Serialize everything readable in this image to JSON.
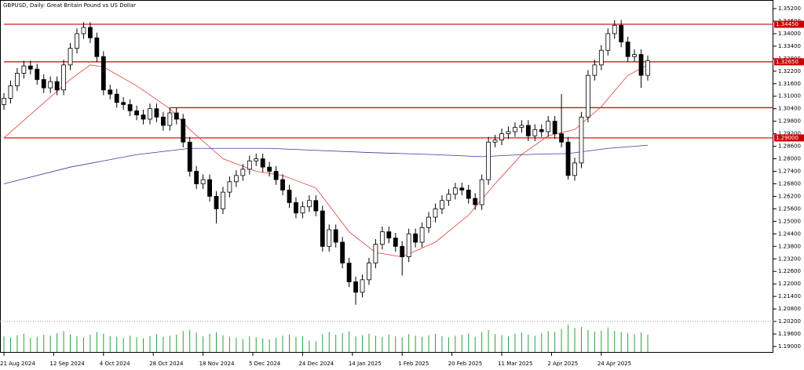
{
  "chart_data": {
    "type": "candlestick",
    "title": "GBPUSD, Daily:  Great Britain Pound vs US Dollar",
    "open": [
      1.306,
      1.309,
      1.315,
      1.321,
      1.3245,
      1.323,
      1.318,
      1.314,
      1.317,
      1.313,
      1.325,
      1.333,
      1.34,
      1.343,
      1.338,
      1.329,
      1.313,
      1.311,
      1.307,
      1.306,
      1.303,
      1.301,
      1.299,
      1.304,
      1.3,
      1.296,
      1.302,
      1.299,
      1.288,
      1.274,
      1.268,
      1.27,
      1.262,
      1.256,
      1.264,
      1.269,
      1.272,
      1.275,
      1.279,
      1.28,
      1.276,
      1.274,
      1.27,
      1.265,
      1.259,
      1.254,
      1.257,
      1.26,
      1.255,
      1.238,
      1.246,
      1.24,
      1.23,
      1.221,
      1.216,
      1.222,
      1.23,
      1.239,
      1.245,
      1.242,
      1.238,
      1.233,
      1.244,
      1.24,
      1.247,
      1.252,
      1.256,
      1.26,
      1.263,
      1.266,
      1.265,
      1.261,
      1.258,
      1.27,
      1.288,
      1.289,
      1.292,
      1.293,
      1.295,
      1.296,
      1.291,
      1.294,
      1.293,
      1.298,
      1.292,
      1.288,
      1.272,
      1.278,
      1.3,
      1.32,
      1.325,
      1.332,
      1.34,
      1.344,
      1.336,
      1.329,
      1.33,
      1.32
    ],
    "high": [
      1.3115,
      1.3175,
      1.3235,
      1.327,
      1.327,
      1.3255,
      1.3205,
      1.3195,
      1.3195,
      1.3275,
      1.3355,
      1.3425,
      1.3455,
      1.3455,
      1.3405,
      1.3315,
      1.3155,
      1.3135,
      1.3095,
      1.3085,
      1.3055,
      1.3035,
      1.3065,
      1.3065,
      1.3025,
      1.3045,
      1.3045,
      1.3015,
      1.2905,
      1.2765,
      1.2725,
      1.2725,
      1.2645,
      1.2665,
      1.2715,
      1.2745,
      1.2775,
      1.2815,
      1.2825,
      1.2825,
      1.2785,
      1.2765,
      1.2725,
      1.2675,
      1.2615,
      1.2595,
      1.2625,
      1.2625,
      1.2575,
      1.2485,
      1.2485,
      1.2425,
      1.2325,
      1.2235,
      1.2245,
      1.2325,
      1.2415,
      1.2475,
      1.2475,
      1.2445,
      1.2405,
      1.2465,
      1.2465,
      1.2495,
      1.2545,
      1.2585,
      1.2625,
      1.2655,
      1.2685,
      1.2685,
      1.2675,
      1.2635,
      1.2725,
      1.2905,
      1.2915,
      1.2945,
      1.2955,
      1.2975,
      1.2985,
      1.2985,
      1.2965,
      1.2965,
      1.3005,
      1.3005,
      1.311,
      1.2905,
      1.2805,
      1.3025,
      1.3225,
      1.3275,
      1.3345,
      1.3425,
      1.3465,
      1.3465,
      1.3385,
      1.3325,
      1.3325,
      1.3295
    ],
    "low": [
      1.3035,
      1.3065,
      1.3125,
      1.3185,
      1.3205,
      1.3155,
      1.3115,
      1.3115,
      1.3105,
      1.3105,
      1.3225,
      1.3305,
      1.3375,
      1.3355,
      1.3265,
      1.3105,
      1.3085,
      1.3045,
      1.3035,
      1.3005,
      1.2985,
      1.2965,
      1.2965,
      1.2975,
      1.2935,
      1.2935,
      1.2965,
      1.2855,
      1.2715,
      1.2655,
      1.2655,
      1.2595,
      1.249,
      1.2535,
      1.2615,
      1.2665,
      1.2695,
      1.2725,
      1.2765,
      1.2735,
      1.2715,
      1.2675,
      1.2625,
      1.2565,
      1.2515,
      1.2515,
      1.2545,
      1.2525,
      1.2355,
      1.2355,
      1.2375,
      1.2275,
      1.2185,
      1.21,
      1.2135,
      1.2195,
      1.2275,
      1.2365,
      1.2395,
      1.2355,
      1.224,
      1.2305,
      1.2375,
      1.2375,
      1.2445,
      1.2495,
      1.2535,
      1.2575,
      1.2605,
      1.2625,
      1.2585,
      1.2555,
      1.2555,
      1.2675,
      1.2855,
      1.2865,
      1.2895,
      1.2905,
      1.2925,
      1.2885,
      1.2885,
      1.2905,
      1.2905,
      1.2895,
      1.2855,
      1.27,
      1.2695,
      1.2755,
      1.2975,
      1.3175,
      1.3225,
      1.3295,
      1.3375,
      1.3335,
      1.3265,
      1.3265,
      1.314,
      1.3175
    ],
    "close": [
      1.309,
      1.315,
      1.321,
      1.3245,
      1.323,
      1.318,
      1.314,
      1.317,
      1.313,
      1.325,
      1.333,
      1.34,
      1.343,
      1.338,
      1.329,
      1.313,
      1.311,
      1.307,
      1.306,
      1.303,
      1.301,
      1.299,
      1.304,
      1.3,
      1.296,
      1.302,
      1.299,
      1.288,
      1.274,
      1.268,
      1.27,
      1.262,
      1.256,
      1.264,
      1.269,
      1.272,
      1.275,
      1.279,
      1.28,
      1.276,
      1.274,
      1.27,
      1.265,
      1.259,
      1.254,
      1.257,
      1.26,
      1.255,
      1.238,
      1.246,
      1.24,
      1.23,
      1.221,
      1.216,
      1.222,
      1.23,
      1.239,
      1.245,
      1.242,
      1.238,
      1.233,
      1.244,
      1.24,
      1.247,
      1.252,
      1.256,
      1.26,
      1.263,
      1.266,
      1.265,
      1.261,
      1.258,
      1.27,
      1.288,
      1.289,
      1.292,
      1.293,
      1.295,
      1.296,
      1.291,
      1.294,
      1.293,
      1.298,
      1.292,
      1.288,
      1.272,
      1.278,
      1.3,
      1.32,
      1.325,
      1.332,
      1.34,
      1.344,
      1.336,
      1.329,
      1.33,
      1.32,
      1.327
    ],
    "bull_color": "#ffffff",
    "bear_color": "#000000",
    "wick_color": "#000000",
    "lines": [
      {
        "color": "#e0403a",
        "x": [
          0,
          5,
          10,
          13,
          15,
          20,
          25,
          28,
          33,
          38,
          42,
          47,
          52,
          56,
          60,
          65,
          70,
          74,
          78,
          82,
          86,
          90,
          94,
          97
        ],
        "values": [
          1.29,
          1.304,
          1.318,
          1.325,
          1.324,
          1.315,
          1.304,
          1.294,
          1.28,
          1.274,
          1.272,
          1.266,
          1.245,
          1.235,
          1.233,
          1.24,
          1.253,
          1.268,
          1.282,
          1.291,
          1.294,
          1.305,
          1.32,
          1.325
        ]
      },
      {
        "color": "#3a3a9a",
        "x": [
          0,
          10,
          20,
          28,
          40,
          55,
          65,
          72,
          78,
          85,
          91,
          97
        ],
        "values": [
          1.268,
          1.276,
          1.282,
          1.285,
          1.285,
          1.283,
          1.282,
          1.281,
          1.282,
          1.2825,
          1.285,
          1.2865
        ]
      }
    ],
    "levels": [
      {
        "value": 1.3445,
        "label": "1.34450",
        "from": 0
      },
      {
        "value": 1.3265,
        "label": "1.32650",
        "from": 0
      },
      {
        "value": 1.3045,
        "from": 25
      },
      {
        "value": 1.29,
        "label": "1.29000",
        "from": 0
      }
    ],
    "level_color": "#cc0000",
    "volume": {
      "color": "#2e9e3e",
      "ylim": [
        0,
        60
      ],
      "values": [
        30,
        28,
        32,
        35,
        27,
        29,
        33,
        31,
        36,
        40,
        34,
        30,
        28,
        33,
        38,
        35,
        30,
        29,
        27,
        31,
        28,
        26,
        30,
        34,
        29,
        31,
        33,
        40,
        42,
        37,
        30,
        35,
        38,
        32,
        29,
        27,
        25,
        30,
        28,
        26,
        24,
        27,
        31,
        33,
        29,
        30,
        22,
        20,
        34,
        38,
        33,
        36,
        39,
        30,
        32,
        35,
        31,
        29,
        33,
        30,
        28,
        34,
        31,
        29,
        32,
        35,
        30,
        28,
        31,
        33,
        36,
        29,
        38,
        42,
        34,
        32,
        30,
        35,
        37,
        33,
        31,
        36,
        40,
        38,
        44,
        52,
        46,
        48,
        42,
        39,
        41,
        47,
        40,
        38,
        36,
        34,
        37,
        33
      ]
    },
    "xlim": [
      0,
      97
    ],
    "xticks": [
      {
        "value": 0,
        "label": "21 Aug 2024"
      },
      {
        "value": 7.5,
        "label": "12 Sep 2024"
      },
      {
        "value": 15,
        "label": "4 Oct 2024"
      },
      {
        "value": 22.5,
        "label": "28 Oct 2024"
      },
      {
        "value": 30,
        "label": "18 Nov 2024"
      },
      {
        "value": 37.5,
        "label": "5 Dec 2024"
      },
      {
        "value": 45,
        "label": "24 Dec 2024"
      },
      {
        "value": 52.5,
        "label": "14 Jan 2025"
      },
      {
        "value": 60,
        "label": "1 Feb 2025"
      },
      {
        "value": 67.5,
        "label": "20 Feb 2025"
      },
      {
        "value": 75,
        "label": "11 Mar 2025"
      },
      {
        "value": 82.5,
        "label": "2 Apr 2025"
      },
      {
        "value": 90,
        "label": "24 Apr 2025"
      }
    ],
    "ylim": [
      1.19,
      1.352
    ],
    "yticks": [
      {
        "value": 1.352,
        "label": "1.35200"
      },
      {
        "value": 1.346,
        "label": "1.34600"
      },
      {
        "value": 1.34,
        "label": "1.34000"
      },
      {
        "value": 1.334,
        "label": "1.33400"
      },
      {
        "value": 1.328,
        "label": "1.32800"
      },
      {
        "value": 1.322,
        "label": "1.32200"
      },
      {
        "value": 1.316,
        "label": "1.31600"
      },
      {
        "value": 1.31,
        "label": "1.31000"
      },
      {
        "value": 1.304,
        "label": "1.30400"
      },
      {
        "value": 1.298,
        "label": "1.29800"
      },
      {
        "value": 1.292,
        "label": "1.29200"
      },
      {
        "value": 1.286,
        "label": "1.28600"
      },
      {
        "value": 1.28,
        "label": "1.28000"
      },
      {
        "value": 1.274,
        "label": "1.27400"
      },
      {
        "value": 1.268,
        "label": "1.26800"
      },
      {
        "value": 1.262,
        "label": "1.26200"
      },
      {
        "value": 1.256,
        "label": "1.25600"
      },
      {
        "value": 1.25,
        "label": "1.25000"
      },
      {
        "value": 1.244,
        "label": "1.24400"
      },
      {
        "value": 1.238,
        "label": "1.23800"
      },
      {
        "value": 1.232,
        "label": "1.23200"
      },
      {
        "value": 1.226,
        "label": "1.22600"
      },
      {
        "value": 1.22,
        "label": "1.22000"
      },
      {
        "value": 1.214,
        "label": "1.21400"
      },
      {
        "value": 1.208,
        "label": "1.20800"
      },
      {
        "value": 1.202,
        "label": "1.20200"
      },
      {
        "value": 1.196,
        "label": "1.19600"
      },
      {
        "value": 1.19,
        "label": "1.19000"
      }
    ]
  }
}
